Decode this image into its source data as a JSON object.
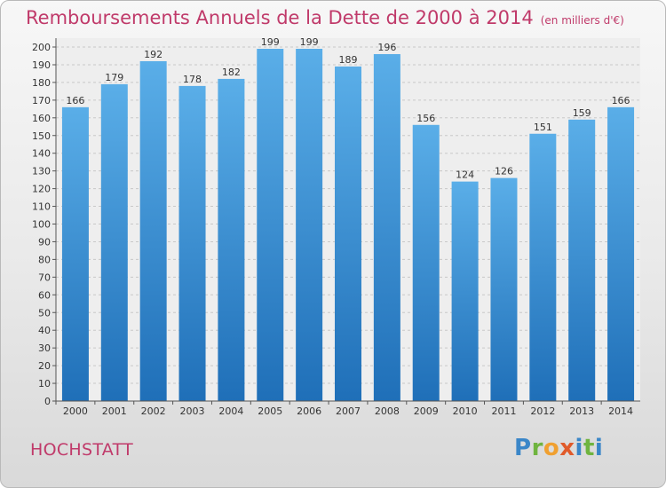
{
  "title": "Remboursements Annuels de la Dette de 2000 à 2014",
  "subtitle": "(en milliers d'€)",
  "city": "HOCHSTATT",
  "logo": {
    "p": "P",
    "r": "r",
    "o": "o",
    "x": "x",
    "i": "i",
    "t": "t",
    "i2": "i"
  },
  "colors": {
    "bar_top": "#5aaee8",
    "bar_bottom": "#1f6fb8",
    "title": "#c03a6a"
  },
  "chart_data": {
    "type": "bar",
    "categories": [
      "2000",
      "2001",
      "2002",
      "2003",
      "2004",
      "2005",
      "2006",
      "2007",
      "2008",
      "2009",
      "2010",
      "2011",
      "2012",
      "2013",
      "2014"
    ],
    "values": [
      166,
      179,
      192,
      178,
      182,
      199,
      199,
      189,
      196,
      156,
      124,
      126,
      151,
      159,
      166
    ],
    "ylim": [
      0,
      200
    ],
    "yticks": [
      0,
      10,
      20,
      30,
      40,
      50,
      60,
      70,
      80,
      90,
      100,
      110,
      120,
      130,
      140,
      150,
      160,
      170,
      180,
      190,
      200
    ],
    "grid": true,
    "data_labels": true
  }
}
